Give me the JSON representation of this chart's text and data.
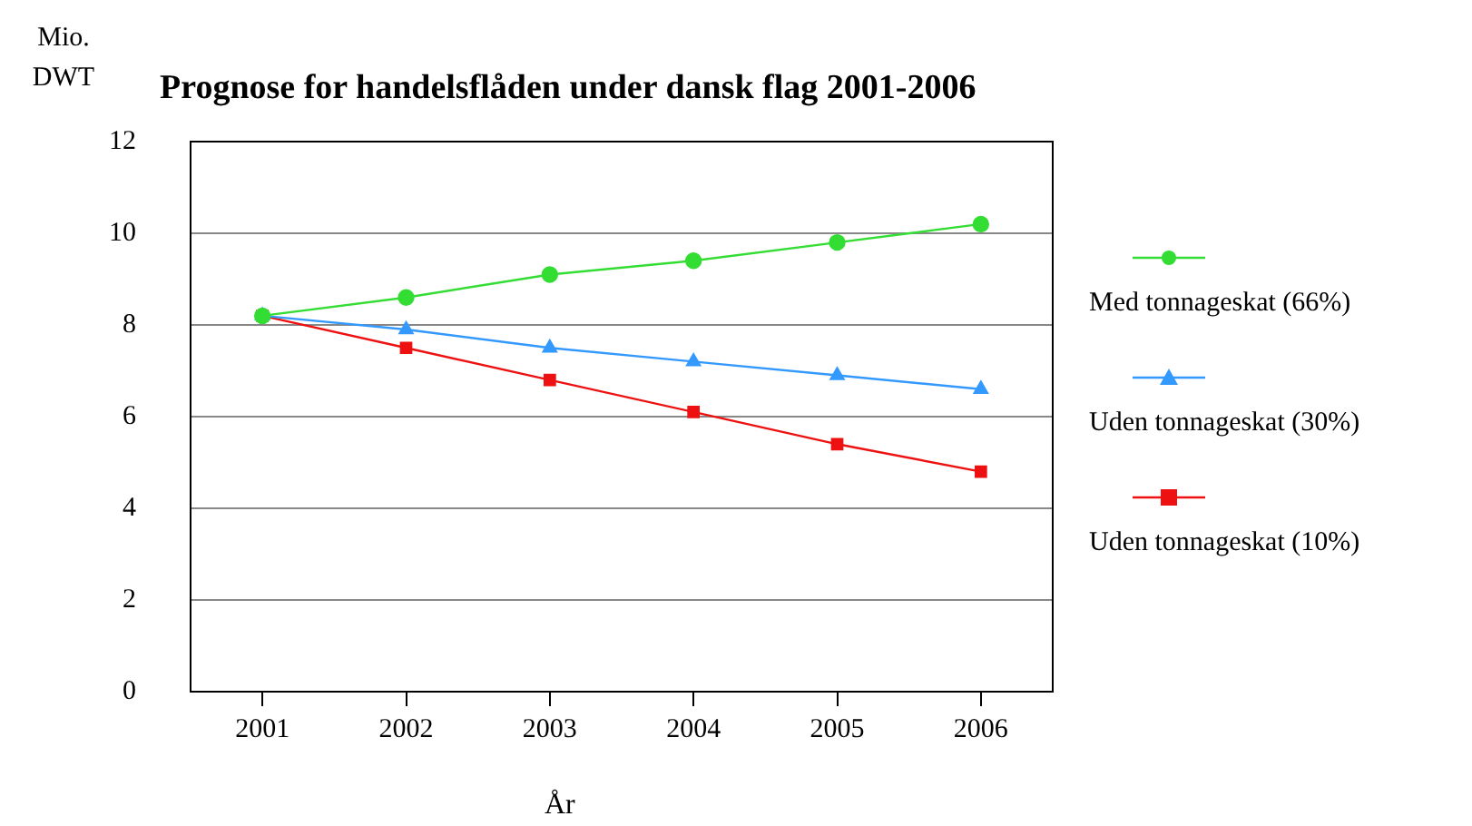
{
  "chart_data": {
    "type": "line",
    "title": "Prognose for handelsflåden under dansk flag 2001-2006",
    "xlabel": "År",
    "ylabel": "Mio. DWT",
    "categories": [
      "2001",
      "2002",
      "2003",
      "2004",
      "2005",
      "2006"
    ],
    "series": [
      {
        "name": "Med tonnageskat (66%)",
        "color": "#33dd33",
        "marker": "circle",
        "values": [
          8.2,
          8.6,
          9.1,
          9.4,
          9.8,
          10.2
        ]
      },
      {
        "name": "Uden tonnageskat (30%)",
        "color": "#3399ff",
        "marker": "triangle",
        "values": [
          8.2,
          7.9,
          7.5,
          7.2,
          6.9,
          6.6
        ]
      },
      {
        "name": "Uden tonnageskat (10%)",
        "color": "#ee1111",
        "marker": "square",
        "values": [
          8.2,
          7.5,
          6.8,
          6.1,
          5.4,
          4.8
        ]
      }
    ],
    "ylim": [
      0,
      12
    ],
    "yticks": [
      0,
      2,
      4,
      6,
      8,
      10,
      12
    ],
    "grid": "y",
    "legend": "right",
    "line_style": "solid"
  }
}
